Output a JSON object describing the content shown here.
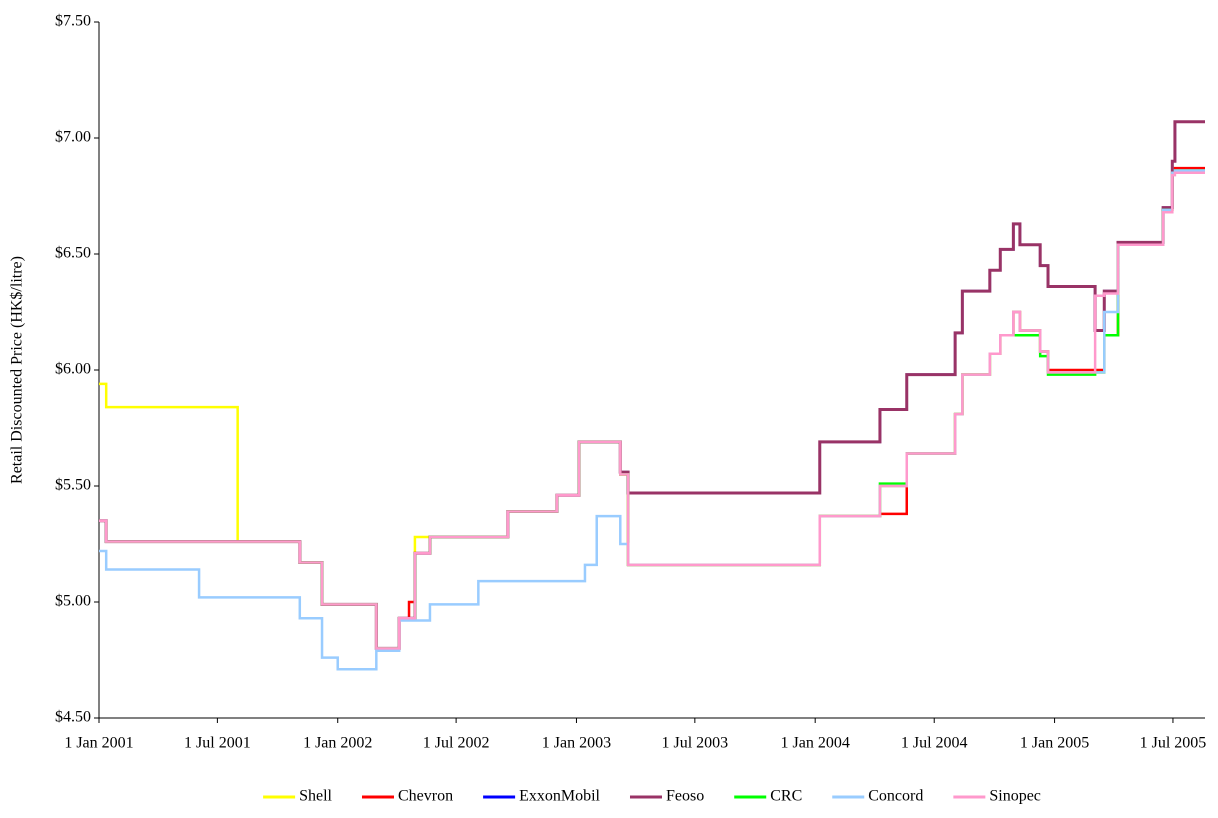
{
  "chart_data": {
    "type": "line",
    "step": "after",
    "y_label": "Retail Discounted Price (HK$/litre)",
    "x": [
      "2001-01-01",
      "2001-01-12",
      "2001-06-03",
      "2001-08-01",
      "2001-11-04",
      "2001-12-08",
      "2002-01-01",
      "2002-03-01",
      "2002-04-05",
      "2002-04-20",
      "2002-04-29",
      "2002-05-22",
      "2002-08-04",
      "2002-09-18",
      "2002-12-02",
      "2003-01-05",
      "2003-01-14",
      "2003-02-01",
      "2003-03-09",
      "2003-03-21",
      "2004-01-08",
      "2004-04-09",
      "2004-05-20",
      "2004-08-02",
      "2004-08-13",
      "2004-09-24",
      "2004-10-10",
      "2004-10-30",
      "2004-11-09",
      "2004-12-10",
      "2004-12-22",
      "2005-03-04",
      "2005-03-18",
      "2005-04-08",
      "2005-06-16",
      "2005-06-30",
      "2005-07-04",
      "2005-08-19"
    ],
    "xlim": [
      "2001-01-01",
      "2005-08-19"
    ],
    "xticks": [
      {
        "value": "2001-01-01",
        "label": "1 Jan 2001"
      },
      {
        "value": "2001-07-01",
        "label": "1 Jul 2001"
      },
      {
        "value": "2002-01-01",
        "label": "1 Jan 2002"
      },
      {
        "value": "2002-07-01",
        "label": "1 Jul 2002"
      },
      {
        "value": "2003-01-01",
        "label": "1 Jan 2003"
      },
      {
        "value": "2003-07-01",
        "label": "1 Jul 2003"
      },
      {
        "value": "2004-01-01",
        "label": "1 Jan 2004"
      },
      {
        "value": "2004-07-01",
        "label": "1 Jul 2004"
      },
      {
        "value": "2005-01-01",
        "label": "1 Jan 2005"
      },
      {
        "value": "2005-07-01",
        "label": "1 Jul 2005"
      }
    ],
    "ylim": [
      4.5,
      7.5
    ],
    "yticks": [
      {
        "value": 4.5,
        "label": "$4.50"
      },
      {
        "value": 5,
        "label": "$5.00"
      },
      {
        "value": 5.5,
        "label": "$5.50"
      },
      {
        "value": 6,
        "label": "$6.00"
      },
      {
        "value": 6.5,
        "label": "$6.50"
      },
      {
        "value": 7,
        "label": "$7.00"
      },
      {
        "value": 7.5,
        "label": "$7.50"
      }
    ],
    "grid": false,
    "legend": "bottom",
    "series": [
      {
        "name": "Shell",
        "color": "#ffff00",
        "values": [
          5.94,
          5.84,
          5.84,
          5.26,
          5.17,
          4.99,
          4.99,
          4.8,
          4.93,
          4.93,
          5.28,
          5.28,
          5.28,
          5.39,
          5.46,
          5.69,
          5.69,
          5.69,
          5.55,
          5.16,
          5.37,
          5.5,
          5.64,
          5.81,
          5.98,
          6.07,
          6.15,
          6.25,
          6.17,
          6.08,
          5.99,
          5.99,
          6.15,
          6.54,
          6.69,
          6.85,
          6.86,
          6.86
        ]
      },
      {
        "name": "Chevron",
        "color": "#ff0000",
        "values": [
          5.35,
          5.26,
          5.26,
          5.26,
          5.17,
          4.99,
          4.99,
          4.8,
          4.93,
          5.0,
          5.21,
          5.28,
          5.28,
          5.39,
          5.46,
          5.69,
          5.69,
          5.69,
          5.55,
          5.16,
          5.37,
          5.38,
          5.64,
          5.81,
          5.98,
          6.07,
          6.15,
          6.25,
          6.17,
          6.08,
          6.0,
          6.0,
          6.15,
          6.54,
          6.69,
          6.85,
          6.87,
          6.87
        ]
      },
      {
        "name": "ExxonMobil",
        "color": "#0000ff",
        "values": [
          5.35,
          5.26,
          5.26,
          5.26,
          5.17,
          4.99,
          4.99,
          4.8,
          4.93,
          4.93,
          5.21,
          5.28,
          5.28,
          5.39,
          5.46,
          5.69,
          5.69,
          5.69,
          5.56,
          5.47,
          5.69,
          5.83,
          5.98,
          6.16,
          6.34,
          6.43,
          6.52,
          6.63,
          6.54,
          6.45,
          6.36,
          6.17,
          6.34,
          6.55,
          6.7,
          6.9,
          7.07,
          7.07
        ]
      },
      {
        "name": "Feoso",
        "color": "#993366",
        "values": [
          5.35,
          5.26,
          5.26,
          5.26,
          5.17,
          4.99,
          4.99,
          4.8,
          4.93,
          4.93,
          5.21,
          5.28,
          5.28,
          5.39,
          5.46,
          5.69,
          5.69,
          5.69,
          5.56,
          5.47,
          5.69,
          5.83,
          5.98,
          6.16,
          6.34,
          6.43,
          6.52,
          6.63,
          6.54,
          6.45,
          6.36,
          6.17,
          6.34,
          6.55,
          6.7,
          6.9,
          7.07,
          7.07
        ]
      },
      {
        "name": "CRC",
        "color": "#00ff00",
        "values": [
          5.35,
          5.26,
          5.26,
          5.26,
          5.17,
          4.99,
          4.99,
          4.8,
          4.93,
          4.93,
          5.21,
          5.28,
          5.28,
          5.39,
          5.46,
          5.69,
          5.69,
          5.69,
          5.55,
          5.16,
          5.37,
          5.51,
          5.64,
          5.81,
          5.98,
          6.07,
          6.15,
          6.15,
          6.15,
          6.06,
          5.98,
          5.99,
          6.15,
          6.54,
          6.69,
          6.85,
          6.86,
          6.86
        ]
      },
      {
        "name": "Concord",
        "color": "#99ccff",
        "values": [
          5.22,
          5.14,
          5.02,
          5.02,
          4.93,
          4.76,
          4.71,
          4.79,
          4.92,
          4.92,
          4.92,
          4.99,
          5.09,
          5.09,
          5.09,
          5.09,
          5.16,
          5.37,
          5.25,
          5.16,
          5.37,
          5.5,
          5.64,
          5.81,
          5.98,
          6.07,
          6.15,
          6.25,
          6.17,
          6.08,
          5.99,
          5.99,
          6.25,
          6.54,
          6.69,
          6.85,
          6.86,
          6.86
        ]
      },
      {
        "name": "Sinopec",
        "color": "#ff99cc",
        "values": [
          5.35,
          5.26,
          5.26,
          5.26,
          5.17,
          4.99,
          4.99,
          4.8,
          4.93,
          4.93,
          5.21,
          5.28,
          5.28,
          5.39,
          5.46,
          5.69,
          5.69,
          5.69,
          5.55,
          5.16,
          5.37,
          5.5,
          5.64,
          5.81,
          5.98,
          6.07,
          6.15,
          6.25,
          6.17,
          6.08,
          5.99,
          6.32,
          6.33,
          6.54,
          6.68,
          6.84,
          6.85,
          6.85
        ]
      }
    ]
  }
}
